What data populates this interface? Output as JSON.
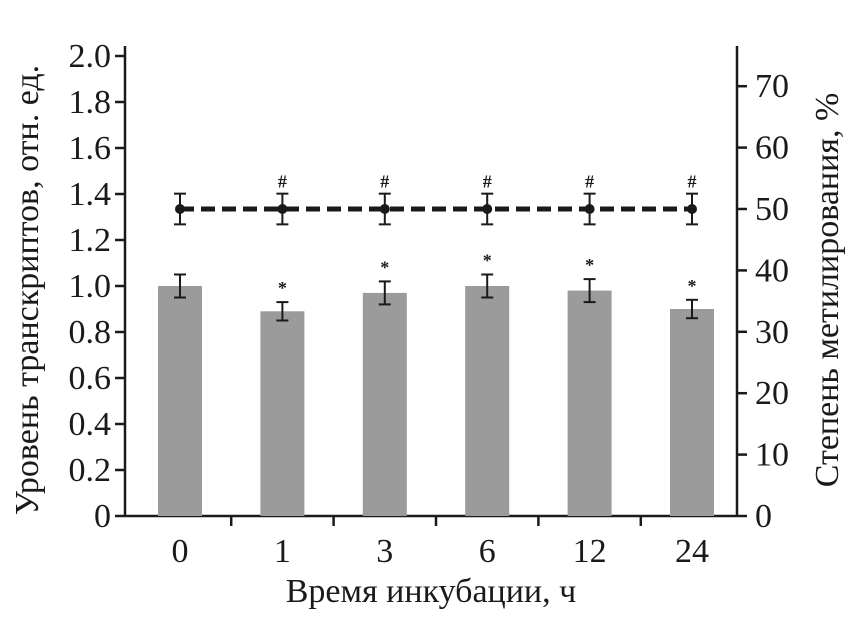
{
  "chart_data": {
    "type": "bar",
    "categories": [
      "0",
      "1",
      "3",
      "6",
      "12",
      "24"
    ],
    "xlabel": "Время инкубации, ч",
    "ylabel": "Уровень транскриптов, отн. ед.",
    "y2label": "Степень метилирования, %",
    "ylim": [
      0,
      2.0
    ],
    "y2lim": [
      0,
      75
    ],
    "yticks": [
      "0",
      "0.2",
      "0.4",
      "0.6",
      "0.8",
      "1.0",
      "1.2",
      "1.4",
      "1.6",
      "1.8",
      "2.0"
    ],
    "y2ticks": [
      "0",
      "10",
      "20",
      "30",
      "40",
      "50",
      "60",
      "70"
    ],
    "series": [
      {
        "name": "transcripts",
        "kind": "bar",
        "axis": "left",
        "color": "#9b9b9b",
        "values": [
          1.0,
          0.89,
          0.97,
          1.0,
          0.98,
          0.9
        ],
        "errors": [
          0.05,
          0.04,
          0.05,
          0.05,
          0.05,
          0.04
        ],
        "markers": [
          "",
          "*",
          "*",
          "*",
          "*",
          "*"
        ]
      },
      {
        "name": "methylation",
        "kind": "line",
        "axis": "right",
        "style": "dashed",
        "color": "#1a1a1a",
        "values": [
          50,
          50,
          50,
          50,
          50,
          50
        ],
        "errors": [
          2.5,
          2.5,
          2.5,
          2.5,
          2.5,
          2.5
        ],
        "markers": [
          "",
          "#",
          "#",
          "#",
          "#",
          "#"
        ]
      }
    ],
    "grid": false
  }
}
